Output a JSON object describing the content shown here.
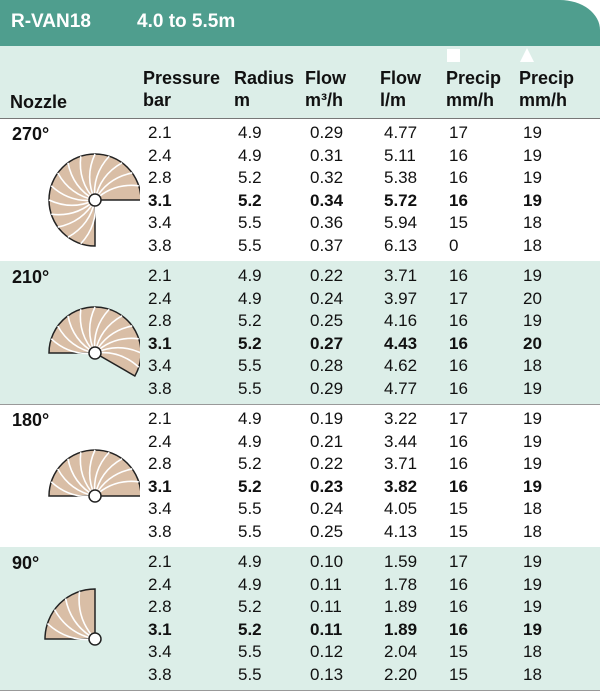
{
  "header": {
    "title": "R-VAN18",
    "range": "4.0 to 5.5m"
  },
  "columns": {
    "nozzle": "Nozzle",
    "fields": [
      {
        "line1": "Pressure",
        "line2": "bar"
      },
      {
        "line1": "Radius",
        "line2": "m"
      },
      {
        "line1": "Flow",
        "line2": "m³/h"
      },
      {
        "line1": "Flow",
        "line2": "l/m"
      },
      {
        "line1": "Precip",
        "line2": "mm/h"
      },
      {
        "line1": "Precip",
        "line2": "mm/h"
      }
    ]
  },
  "groups": [
    {
      "nozzle": "270°",
      "rows": [
        [
          "2.1",
          "4.9",
          "0.29",
          "4.77",
          "17",
          "19"
        ],
        [
          "2.4",
          "4.9",
          "0.31",
          "5.11",
          "16",
          "19"
        ],
        [
          "2.8",
          "5.2",
          "0.32",
          "5.38",
          "16",
          "19"
        ],
        [
          "3.1",
          "5.2",
          "0.34",
          "5.72",
          "16",
          "19"
        ],
        [
          "3.4",
          "5.5",
          "0.36",
          "5.94",
          "15",
          "18"
        ],
        [
          "3.8",
          "5.5",
          "0.37",
          "6.13",
          "0",
          "18"
        ]
      ]
    },
    {
      "nozzle": "210°",
      "rows": [
        [
          "2.1",
          "4.9",
          "0.22",
          "3.71",
          "16",
          "19"
        ],
        [
          "2.4",
          "4.9",
          "0.24",
          "3.97",
          "17",
          "20"
        ],
        [
          "2.8",
          "5.2",
          "0.25",
          "4.16",
          "16",
          "19"
        ],
        [
          "3.1",
          "5.2",
          "0.27",
          "4.43",
          "16",
          "20"
        ],
        [
          "3.4",
          "5.5",
          "0.28",
          "4.62",
          "16",
          "18"
        ],
        [
          "3.8",
          "5.5",
          "0.29",
          "4.77",
          "16",
          "19"
        ]
      ]
    },
    {
      "nozzle": "180°",
      "rows": [
        [
          "2.1",
          "4.9",
          "0.19",
          "3.22",
          "17",
          "19"
        ],
        [
          "2.4",
          "4.9",
          "0.21",
          "3.44",
          "16",
          "19"
        ],
        [
          "2.8",
          "5.2",
          "0.22",
          "3.71",
          "16",
          "19"
        ],
        [
          "3.1",
          "5.2",
          "0.23",
          "3.82",
          "16",
          "19"
        ],
        [
          "3.4",
          "5.5",
          "0.24",
          "4.05",
          "15",
          "18"
        ],
        [
          "3.8",
          "5.5",
          "0.25",
          "4.13",
          "15",
          "18"
        ]
      ]
    },
    {
      "nozzle": "90°",
      "rows": [
        [
          "2.1",
          "4.9",
          "0.10",
          "1.59",
          "17",
          "19"
        ],
        [
          "2.4",
          "4.9",
          "0.11",
          "1.78",
          "16",
          "19"
        ],
        [
          "2.8",
          "5.2",
          "0.11",
          "1.89",
          "16",
          "19"
        ],
        [
          "3.1",
          "5.2",
          "0.11",
          "1.89",
          "16",
          "19"
        ],
        [
          "3.4",
          "5.5",
          "0.12",
          "2.04",
          "15",
          "18"
        ],
        [
          "3.8",
          "5.5",
          "0.13",
          "2.20",
          "15",
          "18"
        ]
      ]
    }
  ]
}
